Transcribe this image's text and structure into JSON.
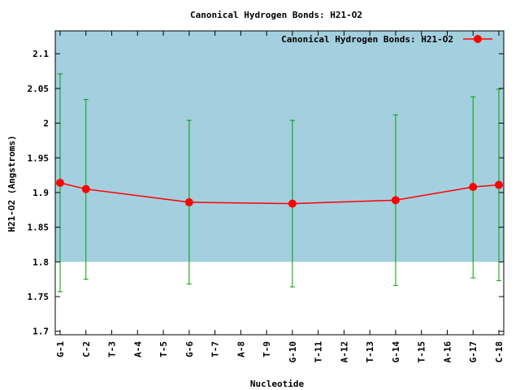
{
  "chart_data": {
    "type": "line",
    "title": "Canonical Hydrogen Bonds: H21-O2",
    "xlabel": "Nucleotide",
    "ylabel": "H21-O2 (Angstroms)",
    "ylim": [
      1.695,
      2.133
    ],
    "yticks": [
      1.7,
      1.75,
      1.8,
      1.85,
      1.9,
      1.95,
      2.0,
      2.05,
      2.1
    ],
    "ytick_labels": [
      "1.7",
      "1.75",
      "1.8",
      "1.85",
      "1.9",
      "1.95",
      "2",
      "2.05",
      "2.1"
    ],
    "categories": [
      "G-1",
      "C-2",
      "T-3",
      "A-4",
      "T-5",
      "G-6",
      "T-7",
      "A-8",
      "T-9",
      "G-10",
      "T-11",
      "A-12",
      "T-13",
      "G-14",
      "T-15",
      "A-16",
      "G-17",
      "C-18"
    ],
    "shaded_band": {
      "y_from": 1.8,
      "y_to": 2.133,
      "color": "#a3cfde"
    },
    "grid": false,
    "legend": {
      "position": "top-right",
      "entries": [
        {
          "label": "Canonical Hydrogen Bonds: H21-O2"
        }
      ]
    },
    "colors": {
      "line": "#ff0000",
      "marker": "#ff0000",
      "errorbar": "#00a000",
      "axis": "#000000"
    },
    "series": [
      {
        "name": "Canonical Hydrogen Bonds: H21-O2",
        "points": [
          {
            "category": "G-1",
            "value": 1.914,
            "err_low": 1.757,
            "err_high": 2.071
          },
          {
            "category": "C-2",
            "value": 1.905,
            "err_low": 1.775,
            "err_high": 2.034
          },
          {
            "category": "G-6",
            "value": 1.886,
            "err_low": 1.768,
            "err_high": 2.004
          },
          {
            "category": "G-10",
            "value": 1.884,
            "err_low": 1.764,
            "err_high": 2.004
          },
          {
            "category": "G-14",
            "value": 1.889,
            "err_low": 1.766,
            "err_high": 2.012
          },
          {
            "category": "G-17",
            "value": 1.908,
            "err_low": 1.777,
            "err_high": 2.038
          },
          {
            "category": "C-18",
            "value": 1.911,
            "err_low": 1.773,
            "err_high": 2.049
          }
        ]
      }
    ]
  }
}
